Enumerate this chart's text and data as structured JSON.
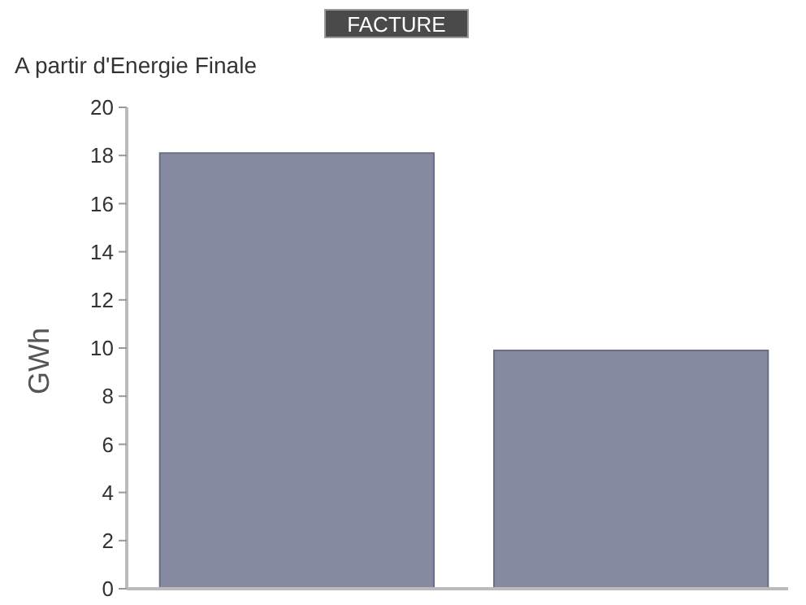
{
  "chart_data": {
    "type": "bar",
    "title": "FACTURE",
    "subtitle": "A partir d'Energie Finale",
    "ylabel": "GWh",
    "categories": [
      null,
      null
    ],
    "values": [
      18.1,
      9.9
    ],
    "color": "#858aa0",
    "ylim": [
      0,
      20
    ],
    "yticks": [
      0,
      2,
      4,
      6,
      8,
      10,
      12,
      14,
      16,
      18,
      20
    ],
    "grid": false
  }
}
